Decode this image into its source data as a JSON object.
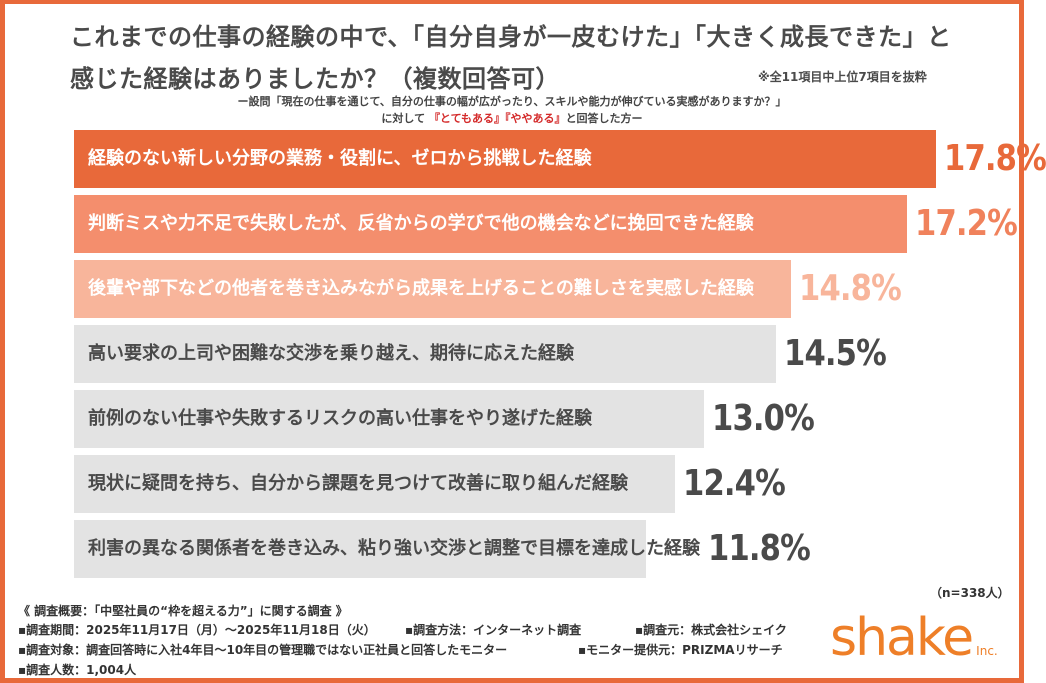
{
  "title": "これまでの仕事の経験の中で、「自分自身が一皮むけた」「大きく成長できた」と感じた経験はありましたか？（複数回答可）",
  "note": "※全11項目中上位7項目を抜粋",
  "question_line1": "ー設問「現在の仕事を通じて、自分の仕事の幅が広がったり、スキルや能力が伸びている実感がありますか？」",
  "question_line2_pre": "に対して",
  "question_line2_red": "『とてもある』『ややある』",
  "question_line2_post": "と回答した方ー",
  "chart_data": {
    "type": "bar",
    "orientation": "horizontal",
    "categories": [
      "経験のない新しい分野の業務・役割に、ゼロから挑戦した経験",
      "判断ミスや力不足で失敗したが、反省からの学びで他の機会などに挽回できた経験",
      "後輩や部下などの他者を巻き込みながら成果を上げることの難しさを実感した経験",
      "高い要求の上司や困難な交渉を乗り越え、期待に応えた経験",
      "前例のない仕事や失敗するリスクの高い仕事をやり遂げた経験",
      "現状に疑問を持ち、自分から課題を見つけて改善に取り組んだ経験",
      "利害の異なる関係者を巻き込み、粘り強い交渉と調整で目標を達成した経験"
    ],
    "values": [
      17.8,
      17.2,
      14.8,
      14.5,
      13.0,
      12.4,
      11.8
    ],
    "value_labels": [
      "17.8%",
      "17.2%",
      "14.8%",
      "14.5%",
      "13.0%",
      "12.4%",
      "11.8%"
    ],
    "bar_colors": [
      "#e8693a",
      "#f48e6d",
      "#f8b59b",
      "#e3e3e3",
      "#e3e3e3",
      "#e3e3e3",
      "#e3e3e3"
    ],
    "value_colors": [
      "#e8693a",
      "#f0825c",
      "#f8b59b",
      "#4a4a4a",
      "#4a4a4a",
      "#4a4a4a",
      "#4a4a4a"
    ],
    "label_colors": [
      "#ffffff",
      "#ffffff",
      "#ffffff",
      "#4a4a4a",
      "#4a4a4a",
      "#4a4a4a",
      "#4a4a4a"
    ],
    "xlim": [
      0,
      19.3
    ]
  },
  "sample": "（n=338人）",
  "footer": {
    "overview": "《 調査概要：「中堅社員の“枠を超える力”」に関する調査 》",
    "period": "▪調査期間：2025年11月17日（月）～2025年11月18日（火）",
    "method": "▪調査方法：インターネット調査",
    "source": "▪調査元：株式会社シェイク",
    "target": "▪調査対象：調査回答時に入社4年目～10年目の管理職ではない正社員と回答したモニター",
    "provider": "▪モニター提供元：PRIZMAリサーチ",
    "count": "▪調査人数：1,004人"
  },
  "logo": {
    "text": "shake",
    "suffix": "Inc."
  }
}
